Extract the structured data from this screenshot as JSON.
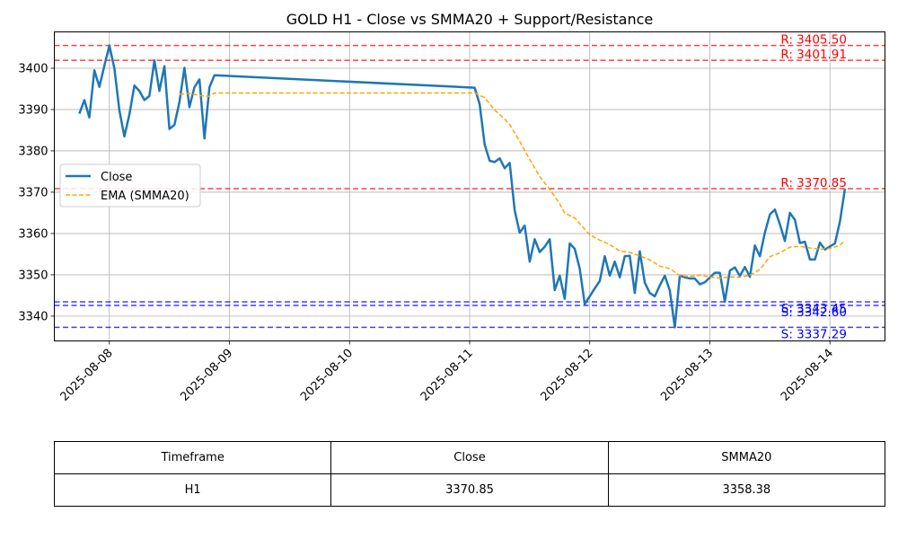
{
  "chart_data": {
    "type": "line",
    "title": "GOLD H1 - Close vs SMMA20 + Support/Resistance",
    "xlabel": "",
    "ylabel": "",
    "xlim": [
      "2025-08-07 13:00",
      "2025-08-14 11:00"
    ],
    "ylim": [
      3334.0,
      3408.8
    ],
    "x_ticks": [
      "2025-08-08",
      "2025-08-09",
      "2025-08-10",
      "2025-08-11",
      "2025-08-12",
      "2025-08-13",
      "2025-08-14"
    ],
    "y_ticks": [
      3340,
      3350,
      3360,
      3370,
      3380,
      3390,
      3400
    ],
    "grid": true,
    "legend": {
      "placement": "center-left",
      "entries": [
        "Close",
        "EMA (SMMA20)"
      ]
    },
    "series": [
      {
        "name": "Close",
        "color": "#1f77b4",
        "style": "solid",
        "points": [
          [
            "2025-08-07 18:00",
            3389.0
          ],
          [
            "2025-08-07 19:00",
            3392.3
          ],
          [
            "2025-08-07 20:00",
            3388.1
          ],
          [
            "2025-08-07 21:00",
            3399.5
          ],
          [
            "2025-08-07 22:00",
            3395.5
          ],
          [
            "2025-08-07 23:00",
            3400.6
          ],
          [
            "2025-08-08 00:00",
            3405.5
          ],
          [
            "2025-08-08 01:00",
            3400.0
          ],
          [
            "2025-08-08 02:00",
            3389.8
          ],
          [
            "2025-08-08 03:00",
            3383.5
          ],
          [
            "2025-08-08 04:00",
            3388.8
          ],
          [
            "2025-08-08 05:00",
            3395.8
          ],
          [
            "2025-08-08 06:00",
            3394.5
          ],
          [
            "2025-08-08 07:00",
            3392.3
          ],
          [
            "2025-08-08 08:00",
            3393.3
          ],
          [
            "2025-08-08 09:00",
            3401.9
          ],
          [
            "2025-08-08 10:00",
            3394.5
          ],
          [
            "2025-08-08 11:00",
            3400.5
          ],
          [
            "2025-08-08 12:00",
            3385.3
          ],
          [
            "2025-08-08 13:00",
            3386.3
          ],
          [
            "2025-08-08 14:00",
            3391.8
          ],
          [
            "2025-08-08 15:00",
            3400.1
          ],
          [
            "2025-08-08 16:00",
            3390.6
          ],
          [
            "2025-08-08 17:00",
            3395.4
          ],
          [
            "2025-08-08 18:00",
            3397.3
          ],
          [
            "2025-08-08 19:00",
            3383.0
          ],
          [
            "2025-08-08 20:00",
            3395.4
          ],
          [
            "2025-08-08 21:00",
            3398.3
          ],
          [
            "2025-08-11 01:00",
            3395.3
          ],
          [
            "2025-08-11 02:00",
            3391.3
          ],
          [
            "2025-08-11 03:00",
            3381.5
          ],
          [
            "2025-08-11 04:00",
            3377.6
          ],
          [
            "2025-08-11 05:00",
            3377.3
          ],
          [
            "2025-08-11 06:00",
            3378.2
          ],
          [
            "2025-08-11 07:00",
            3375.8
          ],
          [
            "2025-08-11 08:00",
            3377.1
          ],
          [
            "2025-08-11 09:00",
            3365.6
          ],
          [
            "2025-08-11 10:00",
            3360.2
          ],
          [
            "2025-08-11 11:00",
            3361.9
          ],
          [
            "2025-08-11 12:00",
            3353.2
          ],
          [
            "2025-08-11 13:00",
            3358.6
          ],
          [
            "2025-08-11 14:00",
            3355.5
          ],
          [
            "2025-08-11 15:00",
            3356.8
          ],
          [
            "2025-08-11 16:00",
            3358.6
          ],
          [
            "2025-08-11 17:00",
            3346.3
          ],
          [
            "2025-08-11 18:00",
            3349.8
          ],
          [
            "2025-08-11 19:00",
            3344.2
          ],
          [
            "2025-08-11 20:00",
            3357.6
          ],
          [
            "2025-08-11 21:00",
            3356.3
          ],
          [
            "2025-08-11 22:00",
            3351.5
          ],
          [
            "2025-08-11 23:00",
            3342.9
          ],
          [
            "2025-08-12 01:00",
            3346.7
          ],
          [
            "2025-08-12 02:00",
            3348.5
          ],
          [
            "2025-08-12 03:00",
            3354.5
          ],
          [
            "2025-08-12 04:00",
            3349.8
          ],
          [
            "2025-08-12 05:00",
            3353.2
          ],
          [
            "2025-08-12 06:00",
            3349.4
          ],
          [
            "2025-08-12 07:00",
            3354.5
          ],
          [
            "2025-08-12 08:00",
            3354.6
          ],
          [
            "2025-08-12 09:00",
            3345.6
          ],
          [
            "2025-08-12 10:00",
            3355.7
          ],
          [
            "2025-08-12 11:00",
            3348.1
          ],
          [
            "2025-08-12 12:00",
            3345.6
          ],
          [
            "2025-08-12 13:00",
            3344.8
          ],
          [
            "2025-08-12 14:00",
            3347.4
          ],
          [
            "2025-08-12 15:00",
            3349.8
          ],
          [
            "2025-08-12 16:00",
            3346.2
          ],
          [
            "2025-08-12 17:00",
            3337.3
          ],
          [
            "2025-08-12 18:00",
            3349.8
          ],
          [
            "2025-08-12 19:00",
            3349.4
          ],
          [
            "2025-08-12 20:00",
            3349.1
          ],
          [
            "2025-08-12 21:00",
            3349.1
          ],
          [
            "2025-08-12 22:00",
            3347.7
          ],
          [
            "2025-08-12 23:00",
            3348.2
          ],
          [
            "2025-08-13 01:00",
            3350.5
          ],
          [
            "2025-08-13 02:00",
            3350.5
          ],
          [
            "2025-08-13 03:00",
            3343.5
          ],
          [
            "2025-08-13 04:00",
            3351.0
          ],
          [
            "2025-08-13 05:00",
            3351.8
          ],
          [
            "2025-08-13 06:00",
            3349.7
          ],
          [
            "2025-08-13 07:00",
            3351.9
          ],
          [
            "2025-08-13 08:00",
            3349.5
          ],
          [
            "2025-08-13 09:00",
            3357.1
          ],
          [
            "2025-08-13 10:00",
            3354.5
          ],
          [
            "2025-08-13 11:00",
            3360.2
          ],
          [
            "2025-08-13 12:00",
            3364.6
          ],
          [
            "2025-08-13 13:00",
            3365.8
          ],
          [
            "2025-08-13 14:00",
            3362.2
          ],
          [
            "2025-08-13 15:00",
            3358.2
          ],
          [
            "2025-08-13 16:00",
            3365.0
          ],
          [
            "2025-08-13 17:00",
            3363.3
          ],
          [
            "2025-08-13 18:00",
            3357.7
          ],
          [
            "2025-08-13 19:00",
            3358.0
          ],
          [
            "2025-08-13 20:00",
            3353.7
          ],
          [
            "2025-08-13 21:00",
            3353.7
          ],
          [
            "2025-08-13 22:00",
            3357.8
          ],
          [
            "2025-08-13 23:00",
            3356.1
          ],
          [
            "2025-08-14 01:00",
            3357.6
          ],
          [
            "2025-08-14 02:00",
            3362.9
          ],
          [
            "2025-08-14 03:00",
            3370.85
          ]
        ]
      },
      {
        "name": "EMA (SMMA20)",
        "color": "#ffa500",
        "style": "dashed",
        "points": [
          [
            "2025-08-08 14:00",
            3393.7
          ],
          [
            "2025-08-08 16:00",
            3393.9
          ],
          [
            "2025-08-08 18:00",
            3393.4
          ],
          [
            "2025-08-08 20:00",
            3393.2
          ],
          [
            "2025-08-08 21:00",
            3394.0
          ],
          [
            "2025-08-11 01:00",
            3394.0
          ],
          [
            "2025-08-11 03:00",
            3392.9
          ],
          [
            "2025-08-11 05:00",
            3389.9
          ],
          [
            "2025-08-11 07:00",
            3387.7
          ],
          [
            "2025-08-11 08:00",
            3386.4
          ],
          [
            "2025-08-11 10:00",
            3382.3
          ],
          [
            "2025-08-11 12:00",
            3377.9
          ],
          [
            "2025-08-11 14:00",
            3373.8
          ],
          [
            "2025-08-11 16:00",
            3370.7
          ],
          [
            "2025-08-11 18:00",
            3367.2
          ],
          [
            "2025-08-11 19:00",
            3364.9
          ],
          [
            "2025-08-11 21:00",
            3363.8
          ],
          [
            "2025-08-11 22:00",
            3362.4
          ],
          [
            "2025-08-12 00:00",
            3359.7
          ],
          [
            "2025-08-12 02:00",
            3358.4
          ],
          [
            "2025-08-12 04:00",
            3357.3
          ],
          [
            "2025-08-12 06:00",
            3355.8
          ],
          [
            "2025-08-12 08:00",
            3355.4
          ],
          [
            "2025-08-12 10:00",
            3354.6
          ],
          [
            "2025-08-12 12:00",
            3353.6
          ],
          [
            "2025-08-12 14:00",
            3352.1
          ],
          [
            "2025-08-12 16:00",
            3351.5
          ],
          [
            "2025-08-12 18:00",
            3349.8
          ],
          [
            "2025-08-12 20:00",
            3349.6
          ],
          [
            "2025-08-12 22:00",
            3349.9
          ],
          [
            "2025-08-13 00:00",
            3349.5
          ],
          [
            "2025-08-13 02:00",
            3349.2
          ],
          [
            "2025-08-13 04:00",
            3349.5
          ],
          [
            "2025-08-13 06:00",
            3349.4
          ],
          [
            "2025-08-13 08:00",
            3349.9
          ],
          [
            "2025-08-13 10:00",
            3351.3
          ],
          [
            "2025-08-13 11:00",
            3352.8
          ],
          [
            "2025-08-13 12:00",
            3354.4
          ],
          [
            "2025-08-13 14:00",
            3355.3
          ],
          [
            "2025-08-13 16:00",
            3356.7
          ],
          [
            "2025-08-13 18:00",
            3356.9
          ],
          [
            "2025-08-13 20:00",
            3356.5
          ],
          [
            "2025-08-13 22:00",
            3356.2
          ],
          [
            "2025-08-14 00:00",
            3356.4
          ],
          [
            "2025-08-14 02:00",
            3357.1
          ],
          [
            "2025-08-14 03:00",
            3358.4
          ]
        ]
      }
    ],
    "levels": [
      {
        "kind": "resistance",
        "value": 3405.5,
        "label": "R: 3405.50",
        "color": "#ff0000"
      },
      {
        "kind": "resistance",
        "value": 3401.91,
        "label": "R: 3401.91",
        "color": "#ff0000"
      },
      {
        "kind": "resistance",
        "value": 3370.85,
        "label": "R: 3370.85",
        "color": "#ff0000"
      },
      {
        "kind": "support",
        "value": 3343.45,
        "label": "S: 3343.45",
        "color": "#0000ff"
      },
      {
        "kind": "support",
        "value": 3342.6,
        "label": "S: 3342.60",
        "color": "#0000ff"
      },
      {
        "kind": "support",
        "value": 3337.29,
        "label": "S: 3337.29",
        "color": "#0000ff"
      }
    ]
  },
  "table": {
    "headers": [
      "Timeframe",
      "Close",
      "SMMA20"
    ],
    "rows": [
      [
        "H1",
        "3370.85",
        "3358.38"
      ]
    ]
  }
}
